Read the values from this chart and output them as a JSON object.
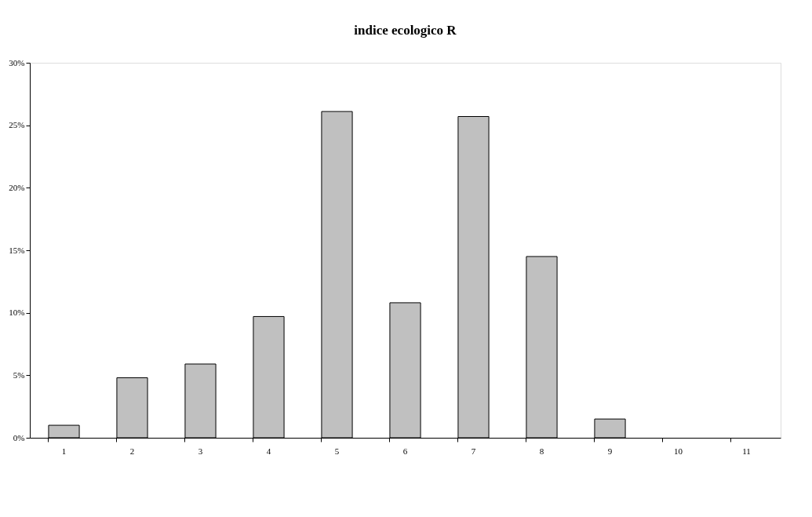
{
  "chart_data": {
    "type": "bar",
    "title": "indice ecologico R",
    "categories": [
      "1",
      "2",
      "3",
      "4",
      "5",
      "6",
      "7",
      "8",
      "9",
      "10",
      "11"
    ],
    "values": [
      1.0,
      4.8,
      5.9,
      9.7,
      26.1,
      10.8,
      25.7,
      14.5,
      1.5,
      0,
      0
    ],
    "color": "#c0c0c0",
    "ylim": [
      0,
      30
    ],
    "yticks": [
      {
        "value": 0,
        "label": "0%"
      },
      {
        "value": 5,
        "label": "5%"
      },
      {
        "value": 10,
        "label": "10%"
      },
      {
        "value": 15,
        "label": "15%"
      },
      {
        "value": 20,
        "label": "20%"
      },
      {
        "value": 25,
        "label": "25%"
      },
      {
        "value": 30,
        "label": "30%"
      }
    ],
    "grid": false
  }
}
